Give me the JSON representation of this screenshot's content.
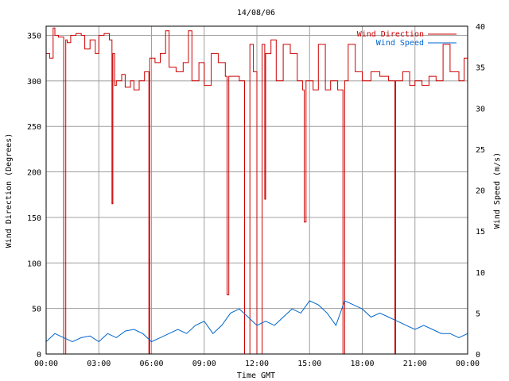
{
  "chart_data": {
    "type": "line",
    "title": "14/08/06",
    "xlabel": "Time GMT",
    "ylabel_left": "Wind Direction (Degrees)",
    "ylabel_right": "Wind Speed (m/s)",
    "x_ticks": [
      "00:00",
      "03:00",
      "06:00",
      "09:00",
      "12:00",
      "15:00",
      "18:00",
      "21:00",
      "00:00"
    ],
    "xlim_hours": [
      0,
      24
    ],
    "ylim_left": [
      0,
      360
    ],
    "yticks_left": [
      0,
      50,
      100,
      150,
      200,
      250,
      300,
      350
    ],
    "ylim_right": [
      0,
      40
    ],
    "yticks_right": [
      0,
      5,
      10,
      15,
      20,
      25,
      30,
      35,
      40
    ],
    "grid": true,
    "legend_position": "top-right",
    "series": [
      {
        "name": "Wind Direction",
        "axis": "left",
        "color": "#cc0000",
        "step": true,
        "x": [
          0.0,
          0.2,
          0.4,
          0.5,
          0.7,
          1.0,
          1.12,
          1.2,
          1.4,
          1.7,
          2.0,
          2.2,
          2.5,
          2.8,
          3.0,
          3.3,
          3.6,
          3.75,
          3.8,
          3.9,
          4.0,
          4.3,
          4.5,
          4.8,
          5.0,
          5.3,
          5.6,
          5.85,
          5.9,
          6.2,
          6.5,
          6.8,
          7.0,
          7.4,
          7.8,
          8.1,
          8.3,
          8.7,
          9.0,
          9.4,
          9.8,
          10.2,
          10.3,
          10.4,
          10.7,
          11.0,
          11.3,
          11.6,
          11.8,
          12.0,
          12.3,
          12.45,
          12.5,
          12.8,
          13.1,
          13.5,
          13.9,
          14.3,
          14.6,
          14.7,
          14.8,
          15.2,
          15.5,
          15.9,
          16.2,
          16.6,
          16.9,
          17.0,
          17.2,
          17.6,
          18.0,
          18.5,
          19.0,
          19.5,
          19.85,
          19.9,
          20.3,
          20.7,
          21.0,
          21.4,
          21.8,
          22.2,
          22.6,
          23.0,
          23.5,
          23.8,
          24.0
        ],
        "values": [
          330,
          325,
          358,
          350,
          348,
          0,
          345,
          342,
          350,
          352,
          350,
          335,
          345,
          330,
          350,
          352,
          345,
          165,
          330,
          295,
          300,
          307,
          293,
          300,
          290,
          300,
          310,
          0,
          325,
          320,
          330,
          355,
          315,
          310,
          320,
          355,
          300,
          320,
          295,
          330,
          320,
          305,
          65,
          305,
          305,
          300,
          0,
          340,
          310,
          0,
          340,
          170,
          330,
          345,
          300,
          340,
          330,
          300,
          290,
          145,
          300,
          290,
          340,
          290,
          300,
          290,
          0,
          300,
          340,
          310,
          300,
          310,
          305,
          300,
          0,
          300,
          310,
          295,
          300,
          295,
          305,
          300,
          340,
          310,
          300,
          325,
          330
        ]
      },
      {
        "name": "Wind Speed",
        "axis": "right",
        "color": "#0066cc",
        "x": [
          0.0,
          0.5,
          1.0,
          1.5,
          2.0,
          2.5,
          3.0,
          3.5,
          4.0,
          4.5,
          5.0,
          5.5,
          6.0,
          6.5,
          7.0,
          7.5,
          8.0,
          8.5,
          9.0,
          9.5,
          10.0,
          10.5,
          11.0,
          11.5,
          12.0,
          12.5,
          13.0,
          13.5,
          14.0,
          14.5,
          15.0,
          15.5,
          16.0,
          16.5,
          17.0,
          17.5,
          18.0,
          18.5,
          19.0,
          19.5,
          20.0,
          20.5,
          21.0,
          21.5,
          22.0,
          22.5,
          23.0,
          23.5,
          24.0
        ],
        "values": [
          1.5,
          2.5,
          2.0,
          1.5,
          2.0,
          2.2,
          1.5,
          2.5,
          2.0,
          2.8,
          3.0,
          2.5,
          1.5,
          2.0,
          2.5,
          3.0,
          2.5,
          3.5,
          4.0,
          2.5,
          3.5,
          5.0,
          5.5,
          4.5,
          3.5,
          4.0,
          3.5,
          4.5,
          5.5,
          5.0,
          6.5,
          6.0,
          5.0,
          3.5,
          6.5,
          6.0,
          5.5,
          4.5,
          5.0,
          4.5,
          4.0,
          3.5,
          3.0,
          3.5,
          3.0,
          2.5,
          2.5,
          2.0,
          2.5
        ]
      }
    ]
  }
}
